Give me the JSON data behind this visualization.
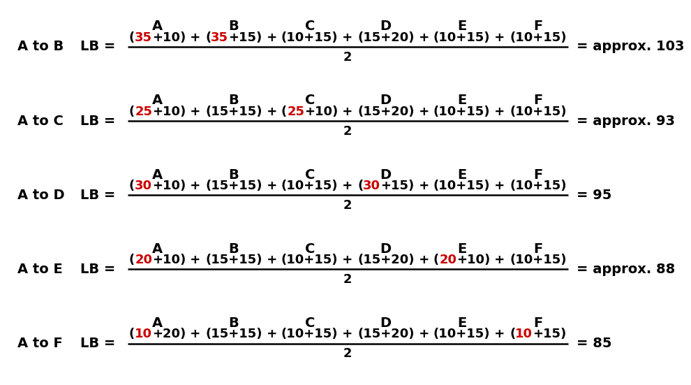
{
  "background_color": "#ffffff",
  "rows": [
    {
      "label": "A to B",
      "terms_display": [
        [
          {
            "text": "(",
            "color": "black"
          },
          {
            "text": "35",
            "color": "red"
          },
          {
            "text": "+10)",
            "color": "black"
          }
        ],
        [
          {
            "text": "(",
            "color": "black"
          },
          {
            "text": "35",
            "color": "red"
          },
          {
            "text": "+15)",
            "color": "black"
          }
        ],
        [
          {
            "text": "(10+15)",
            "color": "black"
          }
        ],
        [
          {
            "text": "(15+20)",
            "color": "black"
          }
        ],
        [
          {
            "text": "(10+15)",
            "color": "black"
          }
        ],
        [
          {
            "text": "(10+15)",
            "color": "black"
          }
        ]
      ],
      "result": "= approx. 103"
    },
    {
      "label": "A to C",
      "terms_display": [
        [
          {
            "text": "(",
            "color": "black"
          },
          {
            "text": "25",
            "color": "red"
          },
          {
            "text": "+10)",
            "color": "black"
          }
        ],
        [
          {
            "text": "(15+15)",
            "color": "black"
          }
        ],
        [
          {
            "text": "(",
            "color": "black"
          },
          {
            "text": "25",
            "color": "red"
          },
          {
            "text": "+10)",
            "color": "black"
          }
        ],
        [
          {
            "text": "(15+20)",
            "color": "black"
          }
        ],
        [
          {
            "text": "(10+15)",
            "color": "black"
          }
        ],
        [
          {
            "text": "(10+15)",
            "color": "black"
          }
        ]
      ],
      "result": "= approx. 93"
    },
    {
      "label": "A to D",
      "terms_display": [
        [
          {
            "text": "(",
            "color": "black"
          },
          {
            "text": "30",
            "color": "red"
          },
          {
            "text": "+10)",
            "color": "black"
          }
        ],
        [
          {
            "text": "(15+15)",
            "color": "black"
          }
        ],
        [
          {
            "text": "(10+15)",
            "color": "black"
          }
        ],
        [
          {
            "text": "(",
            "color": "black"
          },
          {
            "text": "30",
            "color": "red"
          },
          {
            "text": "+15)",
            "color": "black"
          }
        ],
        [
          {
            "text": "(10+15)",
            "color": "black"
          }
        ],
        [
          {
            "text": "(10+15)",
            "color": "black"
          }
        ]
      ],
      "result": "= 95"
    },
    {
      "label": "A to E",
      "terms_display": [
        [
          {
            "text": "(",
            "color": "black"
          },
          {
            "text": "20",
            "color": "red"
          },
          {
            "text": "+10)",
            "color": "black"
          }
        ],
        [
          {
            "text": "(15+15)",
            "color": "black"
          }
        ],
        [
          {
            "text": "(10+15)",
            "color": "black"
          }
        ],
        [
          {
            "text": "(15+20)",
            "color": "black"
          }
        ],
        [
          {
            "text": "(",
            "color": "black"
          },
          {
            "text": "20",
            "color": "red"
          },
          {
            "text": "+10)",
            "color": "black"
          }
        ],
        [
          {
            "text": "(10+15)",
            "color": "black"
          }
        ]
      ],
      "result": "= approx. 88"
    },
    {
      "label": "A to F",
      "terms_display": [
        [
          {
            "text": "(",
            "color": "black"
          },
          {
            "text": "10",
            "color": "red"
          },
          {
            "text": "+20)",
            "color": "black"
          }
        ],
        [
          {
            "text": "(15+15)",
            "color": "black"
          }
        ],
        [
          {
            "text": "(10+15)",
            "color": "black"
          }
        ],
        [
          {
            "text": "(15+20)",
            "color": "black"
          }
        ],
        [
          {
            "text": "(10+15)",
            "color": "black"
          }
        ],
        [
          {
            "text": "(",
            "color": "black"
          },
          {
            "text": "10",
            "color": "red"
          },
          {
            "text": "+15)",
            "color": "black"
          }
        ]
      ],
      "result": "= 85"
    }
  ],
  "col_headers": [
    "A",
    "B",
    "C",
    "D",
    "E",
    "F"
  ],
  "red_color": "#cc0000",
  "black_color": "#000000",
  "label_fontsize": 14,
  "header_fontsize": 14,
  "formula_fontsize": 13,
  "result_fontsize": 14
}
